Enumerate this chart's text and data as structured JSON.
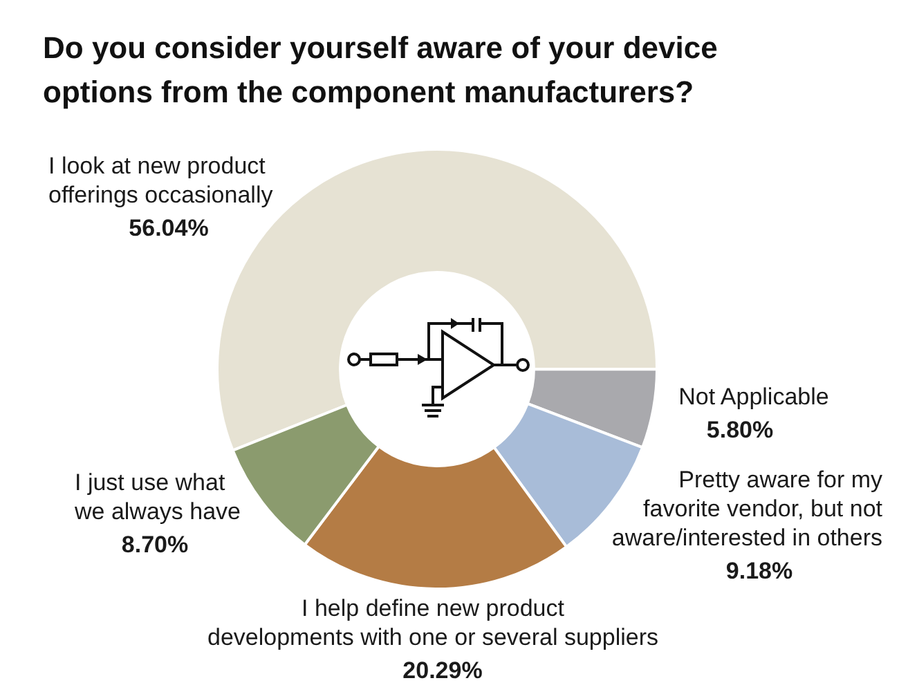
{
  "chart_data": {
    "type": "donut",
    "title": "Do you consider yourself aware of your device options from the component manufacturers?",
    "categories": [
      "I look at new product offerings occasionally",
      "Not Applicable",
      "Pretty aware for my favorite vendor, but not aware/interested in others",
      "I help define new product developments with one or several suppliers",
      "I just use what we always have"
    ],
    "values": [
      56.04,
      5.8,
      9.18,
      20.29,
      8.7
    ],
    "colors": [
      "#e6e2d3",
      "#a9a9ad",
      "#a8bcd8",
      "#b47c45",
      "#8b9b6e"
    ],
    "value_labels": [
      "56.04%",
      "5.80%",
      "9.18%",
      "20.29%",
      "8.70%"
    ]
  }
}
